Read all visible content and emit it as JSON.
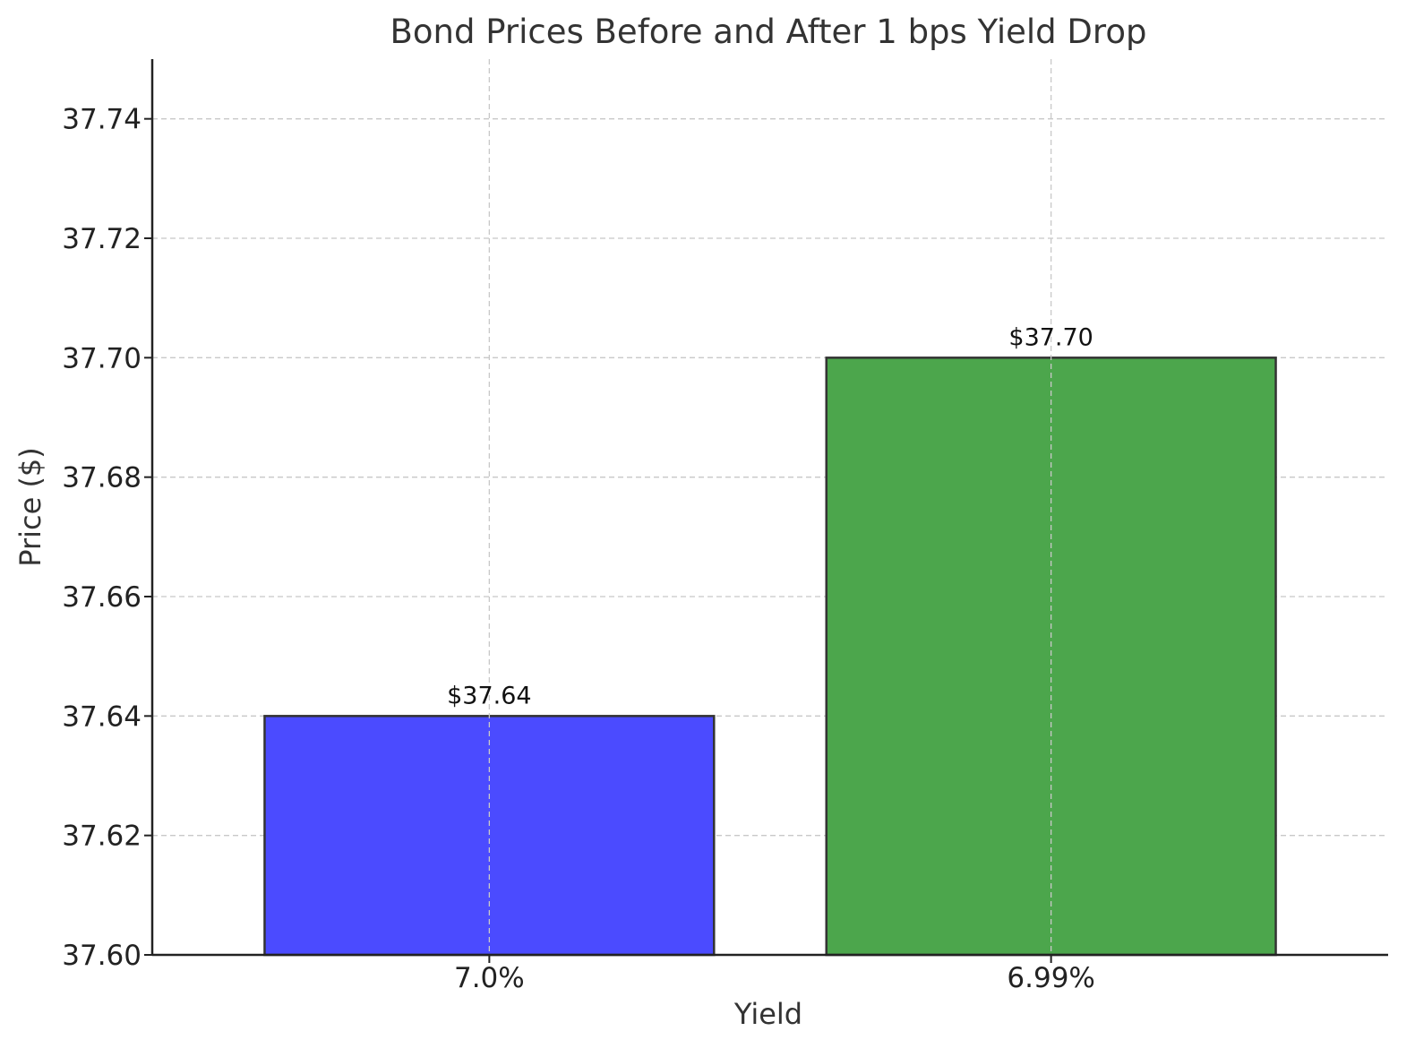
{
  "chart_data": {
    "type": "bar",
    "title": "Bond Prices Before and After 1 bps Yield Drop",
    "xlabel": "Yield",
    "ylabel": "Price ($)",
    "categories": [
      "7.0%",
      "6.99%"
    ],
    "values": [
      37.64,
      37.7
    ],
    "data_labels": [
      "$37.64",
      "$37.70"
    ],
    "colors": [
      "#4b4bff",
      "#4ca64c"
    ],
    "edge_color": "#333333",
    "ylim": [
      37.6,
      37.75
    ],
    "yticks": [
      37.6,
      37.62,
      37.64,
      37.66,
      37.68,
      37.7,
      37.72,
      37.74
    ],
    "ytick_labels": [
      "37.60",
      "37.62",
      "37.64",
      "37.66",
      "37.68",
      "37.70",
      "37.72",
      "37.74"
    ],
    "grid": true,
    "legend": false
  }
}
